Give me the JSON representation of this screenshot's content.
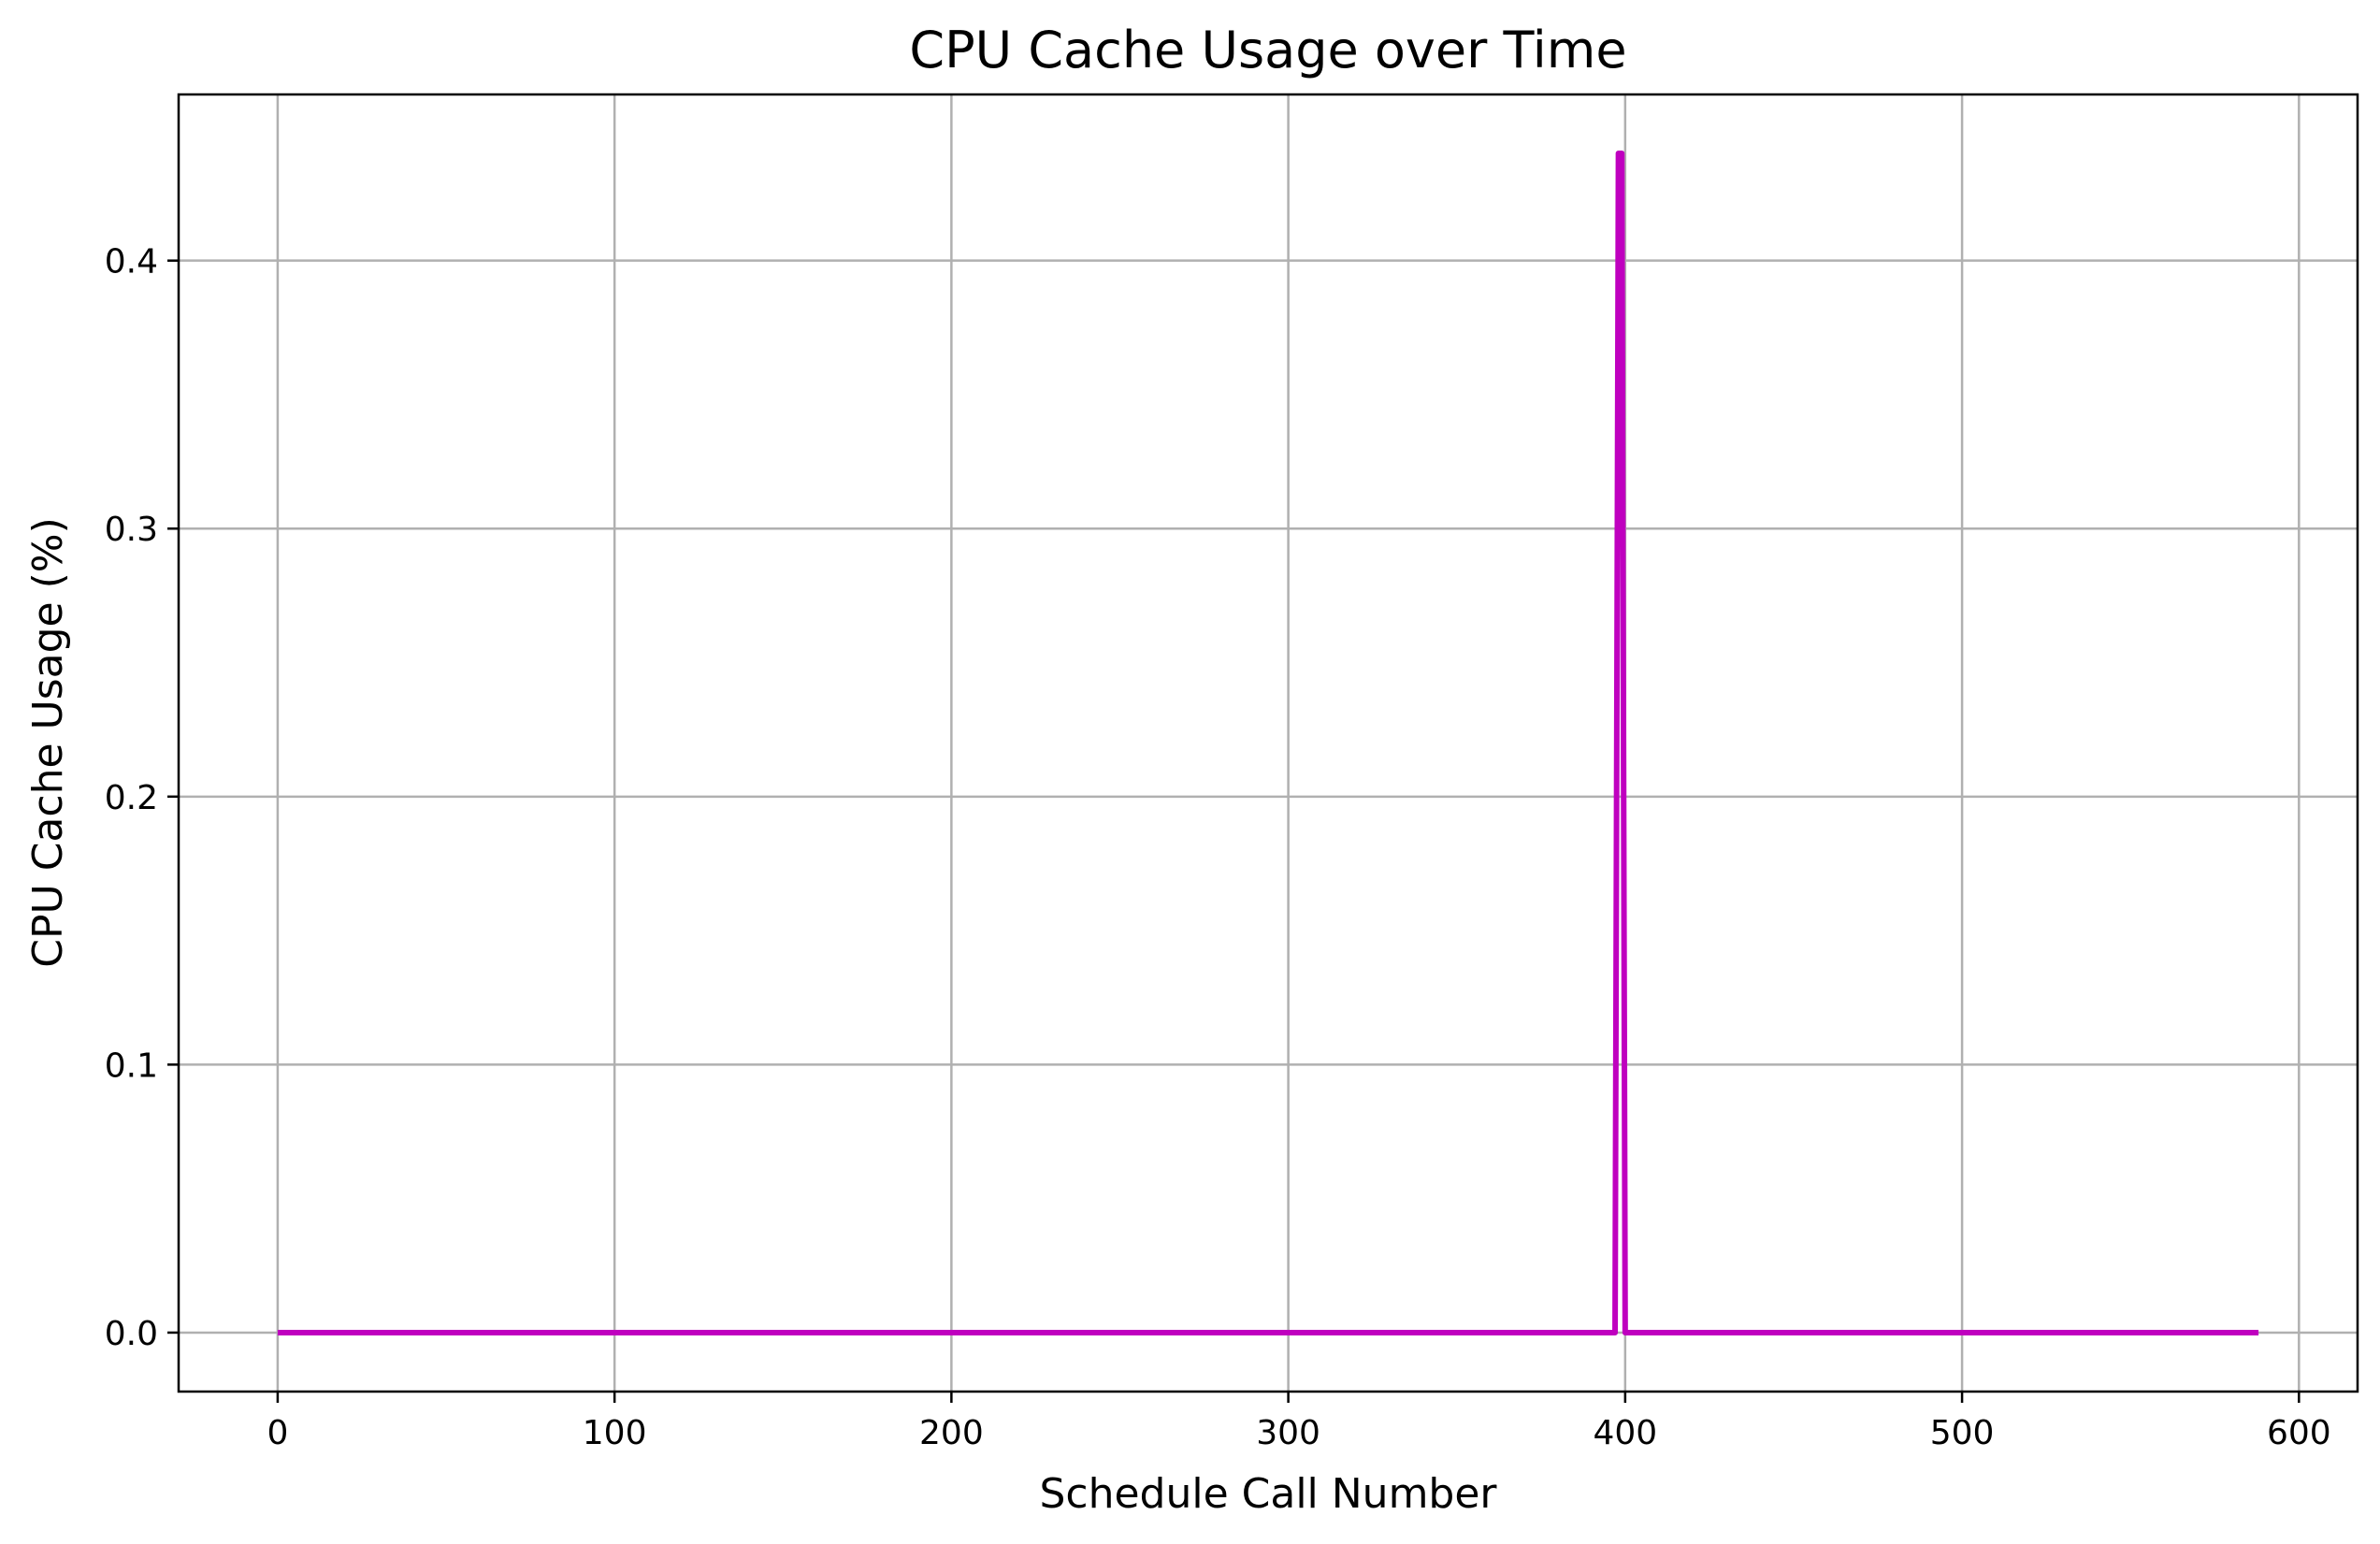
{
  "chart_data": {
    "type": "line",
    "title": "CPU Cache Usage over Time",
    "xlabel": "Schedule Call Number",
    "ylabel": "CPU Cache Usage (%)",
    "xlim": [
      -29.4,
      617.4
    ],
    "ylim": [
      -0.022,
      0.462
    ],
    "x_ticks": [
      0,
      100,
      200,
      300,
      400,
      500,
      600
    ],
    "x_tick_labels": [
      "0",
      "100",
      "200",
      "300",
      "400",
      "500",
      "600"
    ],
    "y_ticks": [
      0.0,
      0.1,
      0.2,
      0.3,
      0.4
    ],
    "y_tick_labels": [
      "0.0",
      "0.1",
      "0.2",
      "0.3",
      "0.4"
    ],
    "grid": true,
    "legend": false,
    "series": [
      {
        "color": "#bf00bf",
        "x": [
          0,
          397,
          398,
          399,
          400,
          588
        ],
        "y": [
          0.0,
          0.0,
          0.44,
          0.44,
          0.0,
          0.0
        ]
      }
    ]
  }
}
